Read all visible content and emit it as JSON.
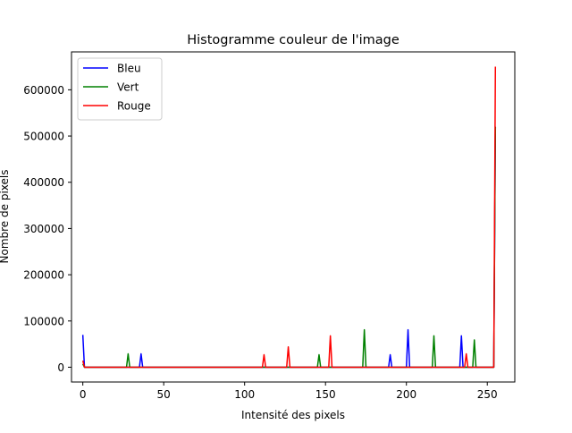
{
  "chart_data": {
    "type": "line",
    "title": "Histogramme couleur de l'image",
    "xlabel": "Intensité des pixels",
    "ylabel": "Nombre de pixels",
    "xlim": [
      -7,
      267
    ],
    "ylim": [
      -32000,
      682000
    ],
    "xticks": [
      0,
      50,
      100,
      150,
      200,
      250
    ],
    "yticks": [
      0,
      100000,
      200000,
      300000,
      400000,
      500000,
      600000
    ],
    "grid": false,
    "legend_position": "top-left",
    "series": [
      {
        "name": "Bleu",
        "color": "#0000ff",
        "points": [
          [
            0,
            70000
          ],
          [
            36,
            29000
          ],
          [
            190,
            27000
          ],
          [
            201,
            81000
          ],
          [
            234,
            68000
          ],
          [
            255,
            520000
          ]
        ]
      },
      {
        "name": "Vert",
        "color": "#008000",
        "points": [
          [
            0,
            7000
          ],
          [
            28,
            29000
          ],
          [
            146,
            27000
          ],
          [
            174,
            81000
          ],
          [
            217,
            68000
          ],
          [
            242,
            59000
          ],
          [
            255,
            520000
          ]
        ]
      },
      {
        "name": "Rouge",
        "color": "#ff0000",
        "points": [
          [
            0,
            14000
          ],
          [
            112,
            27000
          ],
          [
            127,
            44000
          ],
          [
            153,
            68000
          ],
          [
            237,
            29000
          ],
          [
            255,
            650000
          ]
        ]
      }
    ]
  }
}
